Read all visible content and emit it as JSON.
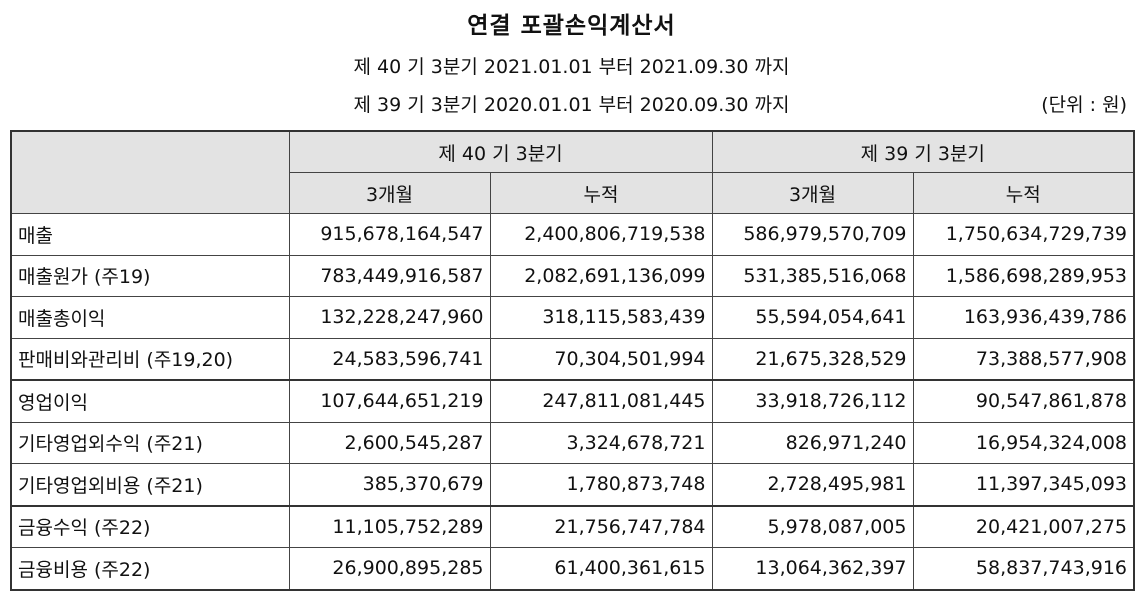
{
  "document": {
    "title": "연결 포괄손익계산서",
    "period_current": "제 40 기 3분기 2021.01.01 부터 2021.09.30 까지",
    "period_prior": "제 39 기 3분기 2020.01.01 부터 2020.09.30 까지",
    "unit": "(단위 : 원)"
  },
  "table": {
    "header": {
      "group_current": "제 40 기 3분기",
      "group_prior": "제 39 기 3분기",
      "sub": [
        "3개월",
        "누적",
        "3개월",
        "누적"
      ]
    },
    "rows": [
      {
        "label": "매출",
        "values": [
          "915,678,164,547",
          "2,400,806,719,538",
          "586,979,570,709",
          "1,750,634,729,739"
        ]
      },
      {
        "label": "매출원가 (주19)",
        "values": [
          "783,449,916,587",
          "2,082,691,136,099",
          "531,385,516,068",
          "1,586,698,289,953"
        ]
      },
      {
        "label": "매출총이익",
        "values": [
          "132,228,247,960",
          "318,115,583,439",
          "55,594,054,641",
          "163,936,439,786"
        ]
      },
      {
        "label": "판매비와관리비 (주19,20)",
        "values": [
          "24,583,596,741",
          "70,304,501,994",
          "21,675,328,529",
          "73,388,577,908"
        ]
      },
      {
        "label": "영업이익",
        "values": [
          "107,644,651,219",
          "247,811,081,445",
          "33,918,726,112",
          "90,547,861,878"
        ]
      },
      {
        "label": "기타영업외수익 (주21)",
        "values": [
          "2,600,545,287",
          "3,324,678,721",
          "826,971,240",
          "16,954,324,008"
        ]
      },
      {
        "label": "기타영업외비용 (주21)",
        "values": [
          "385,370,679",
          "1,780,873,748",
          "2,728,495,981",
          "11,397,345,093"
        ]
      },
      {
        "label": "금융수익 (주22)",
        "values": [
          "11,105,752,289",
          "21,756,747,784",
          "5,978,087,005",
          "20,421,007,275"
        ]
      },
      {
        "label": "금융비용 (주22)",
        "values": [
          "26,900,895,285",
          "61,400,361,615",
          "13,064,362,397",
          "58,837,743,916"
        ]
      }
    ]
  }
}
